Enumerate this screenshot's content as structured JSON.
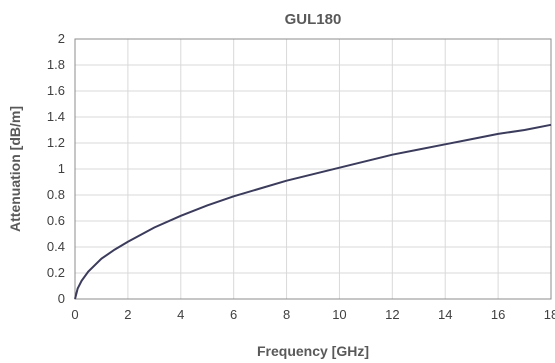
{
  "chart_data": {
    "type": "line",
    "title": "GUL180",
    "xlabel": "Frequency [GHz]",
    "ylabel": "Attenuation [dB/m]",
    "xlim": [
      0,
      18
    ],
    "ylim": [
      0,
      2
    ],
    "x_ticks": [
      "0",
      "2",
      "4",
      "6",
      "8",
      "10",
      "12",
      "14",
      "16",
      "18"
    ],
    "y_ticks": [
      "0",
      "0.2",
      "0.4",
      "0.6",
      "0.8",
      "1",
      "1.2",
      "1.4",
      "1.6",
      "1.8",
      "2"
    ],
    "grid": true,
    "series": [
      {
        "color": "#3b3b5c",
        "x": [
          0,
          0.1,
          0.25,
          0.5,
          1,
          1.5,
          2,
          3,
          4,
          5,
          6,
          7,
          8,
          9,
          10,
          11,
          12,
          13,
          14,
          15,
          16,
          17,
          18
        ],
        "y": [
          0,
          0.08,
          0.14,
          0.21,
          0.31,
          0.38,
          0.44,
          0.55,
          0.64,
          0.72,
          0.79,
          0.85,
          0.91,
          0.96,
          1.01,
          1.06,
          1.11,
          1.15,
          1.19,
          1.23,
          1.27,
          1.3,
          1.34
        ]
      }
    ]
  }
}
